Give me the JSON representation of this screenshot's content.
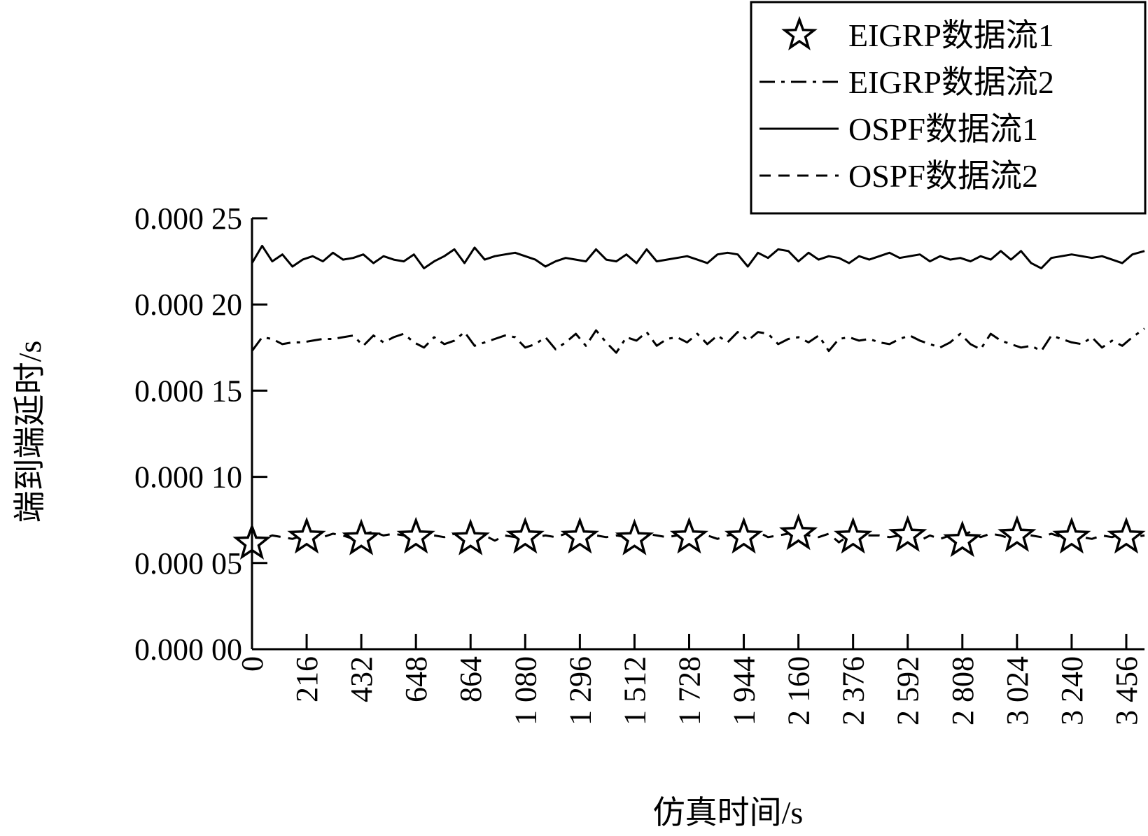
{
  "chart_data": {
    "type": "line",
    "title": "",
    "xlabel": "仿真时间/s",
    "ylabel": "端到端延时/s",
    "x_ticks": [
      0,
      216,
      432,
      648,
      864,
      1080,
      1296,
      1512,
      1728,
      1944,
      2160,
      2376,
      2592,
      2808,
      3024,
      3240,
      3456
    ],
    "x_tick_labels": [
      "0",
      "216",
      "432",
      "648",
      "864",
      "1 080",
      "1 296",
      "1 512",
      "1 728",
      "1 944",
      "2 160",
      "2 376",
      "2 592",
      "2 808",
      "3 024",
      "3 240",
      "3 456"
    ],
    "xlim": [
      0,
      3528
    ],
    "y_ticks": [
      0.0,
      5e-05,
      0.0001,
      0.00015,
      0.0002,
      0.00025
    ],
    "y_tick_labels": [
      "0.000 00",
      "0.000 05",
      "0.000 10",
      "0.000 15",
      "0.000 20",
      "0.000 25"
    ],
    "ylim": [
      0,
      0.00025
    ],
    "legend_position": "top-right",
    "grid": false,
    "series": [
      {
        "name": "EIGRP数据流1",
        "style": "star-markers",
        "x": [
          0,
          216,
          432,
          648,
          864,
          1080,
          1296,
          1512,
          1728,
          1944,
          2160,
          2376,
          2592,
          2808,
          3024,
          3240,
          3456
        ],
        "values": [
          6.15e-05,
          6.5e-05,
          6.4e-05,
          6.5e-05,
          6.4e-05,
          6.5e-05,
          6.5e-05,
          6.4e-05,
          6.5e-05,
          6.5e-05,
          6.7e-05,
          6.5e-05,
          6.6e-05,
          6.3e-05,
          6.6e-05,
          6.5e-05,
          6.5e-05
        ]
      },
      {
        "name": "EIGRP数据流2",
        "style": "dash-dot",
        "x": [
          0,
          40,
          80,
          120,
          160,
          200,
          240,
          280,
          320,
          360,
          400,
          440,
          480,
          520,
          560,
          600,
          640,
          680,
          720,
          760,
          800,
          840,
          880,
          920,
          960,
          1000,
          1040,
          1080,
          1120,
          1160,
          1200,
          1240,
          1280,
          1320,
          1360,
          1400,
          1440,
          1480,
          1520,
          1560,
          1600,
          1640,
          1680,
          1720,
          1760,
          1800,
          1840,
          1880,
          1920,
          1960,
          2000,
          2040,
          2080,
          2120,
          2160,
          2200,
          2240,
          2280,
          2320,
          2360,
          2400,
          2440,
          2480,
          2520,
          2560,
          2600,
          2640,
          2680,
          2720,
          2760,
          2800,
          2840,
          2880,
          2920,
          2960,
          3000,
          3040,
          3080,
          3120,
          3160,
          3200,
          3240,
          3280,
          3320,
          3360,
          3400,
          3440,
          3480,
          3528
        ],
        "values": [
          0.000173,
          0.000181,
          0.00018,
          0.000177,
          0.000178,
          0.000178,
          0.000179,
          0.00018,
          0.00018,
          0.000181,
          0.000182,
          0.000176,
          0.000182,
          0.000178,
          0.000181,
          0.000183,
          0.000178,
          0.000175,
          0.000181,
          0.000177,
          0.000179,
          0.000184,
          0.000176,
          0.000178,
          0.00018,
          0.000182,
          0.000181,
          0.000175,
          0.000177,
          0.000181,
          0.000174,
          0.000178,
          0.000183,
          0.000176,
          0.000185,
          0.000178,
          0.000172,
          0.000181,
          0.000179,
          0.000184,
          0.000176,
          0.00018,
          0.000181,
          0.000178,
          0.000183,
          0.000177,
          0.000182,
          0.000178,
          0.000184,
          0.000179,
          0.000184,
          0.000183,
          0.000177,
          0.00018,
          0.000181,
          0.000178,
          0.000182,
          0.000173,
          0.00018,
          0.000181,
          0.000179,
          0.00018,
          0.000178,
          0.000177,
          0.00018,
          0.000182,
          0.000179,
          0.000177,
          0.000175,
          0.000178,
          0.000183,
          0.000177,
          0.000174,
          0.000183,
          0.000179,
          0.000177,
          0.000175,
          0.000176,
          0.000173,
          0.000182,
          0.00018,
          0.000178,
          0.000177,
          0.000181,
          0.000175,
          0.000179,
          0.000176,
          0.000181,
          0.000186
        ]
      },
      {
        "name": "OSPF数据流1",
        "style": "solid",
        "x": [
          0,
          40,
          80,
          120,
          160,
          200,
          240,
          280,
          320,
          360,
          400,
          440,
          480,
          520,
          560,
          600,
          640,
          680,
          720,
          760,
          800,
          840,
          880,
          920,
          960,
          1000,
          1040,
          1080,
          1120,
          1160,
          1200,
          1240,
          1280,
          1320,
          1360,
          1400,
          1440,
          1480,
          1520,
          1560,
          1600,
          1640,
          1680,
          1720,
          1760,
          1800,
          1840,
          1880,
          1920,
          1960,
          2000,
          2040,
          2080,
          2120,
          2160,
          2200,
          2240,
          2280,
          2320,
          2360,
          2400,
          2440,
          2480,
          2520,
          2560,
          2600,
          2640,
          2680,
          2720,
          2760,
          2800,
          2840,
          2880,
          2920,
          2960,
          3000,
          3040,
          3080,
          3120,
          3160,
          3200,
          3240,
          3280,
          3320,
          3360,
          3400,
          3440,
          3480,
          3528
        ],
        "values": [
          0.000224,
          0.000234,
          0.000225,
          0.000229,
          0.000222,
          0.000226,
          0.000228,
          0.000225,
          0.00023,
          0.000226,
          0.000227,
          0.000229,
          0.000224,
          0.000228,
          0.000226,
          0.000225,
          0.000229,
          0.000221,
          0.000225,
          0.000228,
          0.000232,
          0.000224,
          0.000233,
          0.000226,
          0.000228,
          0.000229,
          0.00023,
          0.000228,
          0.000226,
          0.000222,
          0.000225,
          0.000227,
          0.000226,
          0.000225,
          0.000232,
          0.000226,
          0.000225,
          0.000229,
          0.000224,
          0.000232,
          0.000225,
          0.000226,
          0.000227,
          0.000228,
          0.000226,
          0.000224,
          0.000229,
          0.00023,
          0.000229,
          0.000222,
          0.00023,
          0.000227,
          0.000232,
          0.000231,
          0.000225,
          0.00023,
          0.000226,
          0.000228,
          0.000227,
          0.000224,
          0.000228,
          0.000226,
          0.000228,
          0.00023,
          0.000227,
          0.000228,
          0.000229,
          0.000225,
          0.000228,
          0.000226,
          0.000227,
          0.000225,
          0.000228,
          0.000226,
          0.000231,
          0.000226,
          0.000231,
          0.000224,
          0.000221,
          0.000227,
          0.000228,
          0.000229,
          0.000228,
          0.000227,
          0.000228,
          0.000226,
          0.000224,
          0.000229,
          0.000231
        ]
      },
      {
        "name": "OSPF数据流2",
        "style": "dashed",
        "x": [
          0,
          40,
          80,
          120,
          160,
          200,
          240,
          280,
          320,
          360,
          400,
          440,
          480,
          520,
          560,
          600,
          640,
          680,
          720,
          760,
          800,
          840,
          880,
          920,
          960,
          1000,
          1040,
          1080,
          1120,
          1160,
          1200,
          1240,
          1280,
          1320,
          1360,
          1400,
          1440,
          1480,
          1520,
          1560,
          1600,
          1640,
          1680,
          1720,
          1760,
          1800,
          1840,
          1880,
          1920,
          1960,
          2000,
          2040,
          2080,
          2120,
          2160,
          2200,
          2240,
          2280,
          2320,
          2360,
          2400,
          2440,
          2480,
          2520,
          2560,
          2600,
          2640,
          2680,
          2720,
          2760,
          2800,
          2840,
          2880,
          2920,
          2960,
          3000,
          3040,
          3080,
          3120,
          3160,
          3200,
          3240,
          3280,
          3320,
          3360,
          3400,
          3440,
          3480,
          3528
        ],
        "values": [
          6.15e-05,
          6.4e-05,
          6.6e-05,
          6.5e-05,
          6.4e-05,
          6.6e-05,
          6.5e-05,
          6.5e-05,
          6.7e-05,
          6.6e-05,
          6.4e-05,
          6.7e-05,
          6.8e-05,
          6.6e-05,
          6.7e-05,
          6.6e-05,
          6.5e-05,
          6.7e-05,
          6.6e-05,
          6.5e-05,
          6.7e-05,
          6.6e-05,
          6.4e-05,
          6.6e-05,
          6.3e-05,
          6.6e-05,
          6.5e-05,
          6.6e-05,
          6.5e-05,
          6.6e-05,
          6.5e-05,
          6.7e-05,
          6.6e-05,
          6.4e-05,
          6.6e-05,
          6.5e-05,
          6.6e-05,
          6.5e-05,
          6.5e-05,
          6.7e-05,
          6.6e-05,
          6.5e-05,
          6.6e-05,
          6.5e-05,
          6.6e-05,
          6.6e-05,
          6.4e-05,
          6.6e-05,
          6.7e-05,
          6.6e-05,
          6.8e-05,
          6.5e-05,
          6.6e-05,
          6.7e-05,
          6.8e-05,
          6.6e-05,
          6.5e-05,
          6.7e-05,
          6.2e-05,
          6.6e-05,
          6.7e-05,
          6.6e-05,
          6.6e-05,
          6.5e-05,
          6.6e-05,
          6.4e-05,
          6.3e-05,
          6.6e-05,
          6.4e-05,
          6.6e-05,
          6.6e-05,
          6.8e-05,
          6.5e-05,
          6.7e-05,
          6.6e-05,
          6.4e-05,
          6.7e-05,
          6.6e-05,
          6.5e-05,
          6.7e-05,
          6.5e-05,
          6.6e-05,
          6.5e-05,
          6.4e-05,
          6.6e-05,
          6.5e-05,
          6.7e-05,
          6.5e-05,
          6.6e-05
        ]
      }
    ]
  }
}
